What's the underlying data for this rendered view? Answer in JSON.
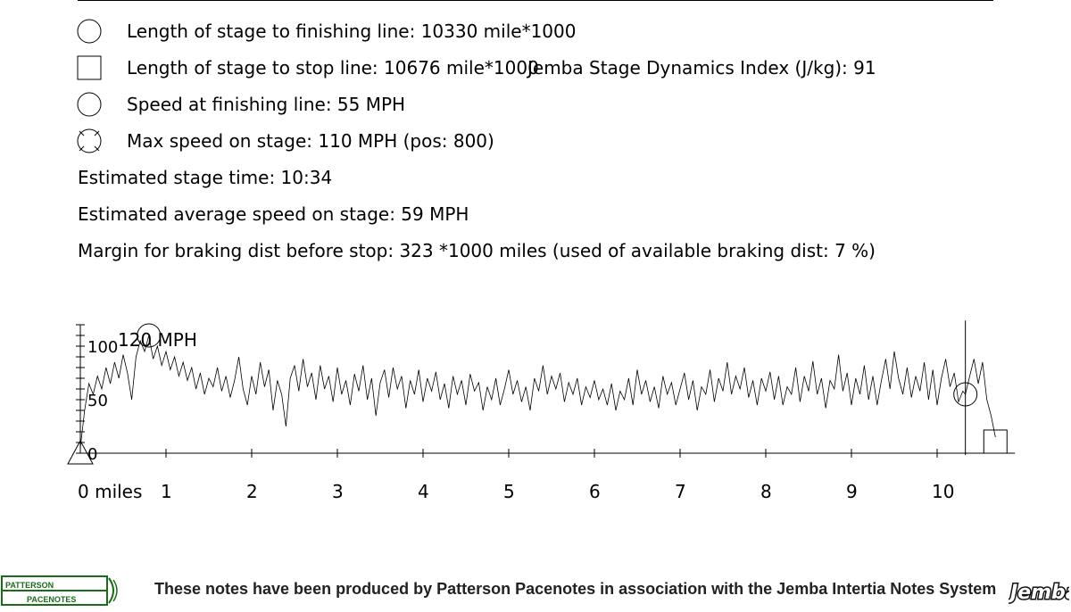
{
  "legend": [
    {
      "symbol": "circle",
      "icon": "finishing-line-circle-icon",
      "text": "Length of stage to finishing line: 10330 mile*1000"
    },
    {
      "symbol": "square",
      "icon": "stop-line-square-icon",
      "text": "Length of stage to stop line: 10676 mile*1000"
    },
    {
      "symbol": "circle",
      "icon": "finishing-speed-circle-icon",
      "text": "Speed at finishing line: 55 MPH"
    },
    {
      "symbol": "crossed-circle",
      "icon": "max-speed-crossed-circle-icon",
      "text": "Max speed on stage: 110 MPH (pos: 800)"
    }
  ],
  "dynamics_index": "Jemba Stage Dynamics Index (J/kg): 91",
  "info": [
    "Estimated stage time: 10:34",
    "Estimated average speed on stage: 59 MPH",
    "Margin for braking dist before stop: 323 *1000 miles (used of available braking dist: 7 %)"
  ],
  "footer": {
    "text": "These notes have been produced by Patterson Pacenotes in association with the Jemba Intertia Notes System",
    "logo_left_line1": "PATTERSON",
    "logo_left_line2": "PACENOTES",
    "logo_right": "Jemba"
  },
  "chart_data": {
    "type": "line",
    "y_unit_label": "120 MPH",
    "yticks": [
      "0",
      "50",
      "100"
    ],
    "xticks": [
      "0 miles",
      "1",
      "2",
      "3",
      "4",
      "5",
      "6",
      "7",
      "8",
      "9",
      "10"
    ],
    "xlim": [
      0,
      10.7
    ],
    "ylim": [
      0,
      120
    ],
    "finish_position": 10.33,
    "stop_position": 10.68,
    "finish_speed": 55,
    "max_speed": 110,
    "max_speed_position": 0.8,
    "series": [
      {
        "values": [
          [
            0,
            5
          ],
          [
            0.05,
            40
          ],
          [
            0.1,
            65
          ],
          [
            0.15,
            55
          ],
          [
            0.2,
            72
          ],
          [
            0.25,
            60
          ],
          [
            0.3,
            80
          ],
          [
            0.35,
            65
          ],
          [
            0.4,
            85
          ],
          [
            0.45,
            70
          ],
          [
            0.5,
            92
          ],
          [
            0.55,
            75
          ],
          [
            0.6,
            50
          ],
          [
            0.65,
            90
          ],
          [
            0.7,
            105
          ],
          [
            0.75,
            95
          ],
          [
            0.8,
            110
          ],
          [
            0.85,
            88
          ],
          [
            0.9,
            100
          ],
          [
            0.95,
            82
          ],
          [
            1.0,
            95
          ],
          [
            1.05,
            78
          ],
          [
            1.1,
            90
          ],
          [
            1.15,
            72
          ],
          [
            1.2,
            85
          ],
          [
            1.25,
            68
          ],
          [
            1.3,
            80
          ],
          [
            1.35,
            60
          ],
          [
            1.4,
            75
          ],
          [
            1.45,
            55
          ],
          [
            1.5,
            70
          ],
          [
            1.55,
            62
          ],
          [
            1.6,
            80
          ],
          [
            1.65,
            58
          ],
          [
            1.7,
            72
          ],
          [
            1.75,
            52
          ],
          [
            1.8,
            68
          ],
          [
            1.85,
            90
          ],
          [
            1.9,
            60
          ],
          [
            1.95,
            45
          ],
          [
            2.0,
            72
          ],
          [
            2.05,
            55
          ],
          [
            2.1,
            85
          ],
          [
            2.15,
            62
          ],
          [
            2.2,
            78
          ],
          [
            2.25,
            40
          ],
          [
            2.3,
            68
          ],
          [
            2.35,
            55
          ],
          [
            2.4,
            25
          ],
          [
            2.45,
            70
          ],
          [
            2.5,
            82
          ],
          [
            2.55,
            58
          ],
          [
            2.6,
            88
          ],
          [
            2.65,
            62
          ],
          [
            2.7,
            75
          ],
          [
            2.75,
            50
          ],
          [
            2.8,
            82
          ],
          [
            2.85,
            60
          ],
          [
            2.9,
            72
          ],
          [
            2.95,
            48
          ],
          [
            3.0,
            80
          ],
          [
            3.05,
            55
          ],
          [
            3.1,
            68
          ],
          [
            3.15,
            45
          ],
          [
            3.2,
            74
          ],
          [
            3.25,
            58
          ],
          [
            3.3,
            82
          ],
          [
            3.35,
            50
          ],
          [
            3.4,
            70
          ],
          [
            3.45,
            35
          ],
          [
            3.5,
            66
          ],
          [
            3.55,
            78
          ],
          [
            3.6,
            52
          ],
          [
            3.65,
            80
          ],
          [
            3.7,
            60
          ],
          [
            3.75,
            72
          ],
          [
            3.8,
            42
          ],
          [
            3.85,
            68
          ],
          [
            3.9,
            55
          ],
          [
            3.95,
            78
          ],
          [
            4.0,
            48
          ],
          [
            4.05,
            70
          ],
          [
            4.1,
            58
          ],
          [
            4.15,
            76
          ],
          [
            4.2,
            50
          ],
          [
            4.25,
            65
          ],
          [
            4.3,
            42
          ],
          [
            4.35,
            72
          ],
          [
            4.4,
            55
          ],
          [
            4.45,
            68
          ],
          [
            4.5,
            45
          ],
          [
            4.55,
            74
          ],
          [
            4.6,
            58
          ],
          [
            4.65,
            66
          ],
          [
            4.7,
            40
          ],
          [
            4.75,
            62
          ],
          [
            4.8,
            50
          ],
          [
            4.85,
            70
          ],
          [
            4.9,
            45
          ],
          [
            4.95,
            60
          ],
          [
            5.0,
            78
          ],
          [
            5.05,
            55
          ],
          [
            5.1,
            68
          ],
          [
            5.15,
            48
          ],
          [
            5.2,
            62
          ],
          [
            5.25,
            40
          ],
          [
            5.3,
            70
          ],
          [
            5.35,
            58
          ],
          [
            5.4,
            82
          ],
          [
            5.45,
            55
          ],
          [
            5.5,
            72
          ],
          [
            5.55,
            60
          ],
          [
            5.6,
            75
          ],
          [
            5.65,
            48
          ],
          [
            5.7,
            66
          ],
          [
            5.75,
            55
          ],
          [
            5.8,
            70
          ],
          [
            5.85,
            45
          ],
          [
            5.9,
            62
          ],
          [
            5.95,
            52
          ],
          [
            6.0,
            68
          ],
          [
            6.05,
            50
          ],
          [
            6.1,
            60
          ],
          [
            6.15,
            45
          ],
          [
            6.2,
            65
          ],
          [
            6.25,
            40
          ],
          [
            6.3,
            58
          ],
          [
            6.35,
            50
          ],
          [
            6.4,
            70
          ],
          [
            6.45,
            45
          ],
          [
            6.5,
            78
          ],
          [
            6.55,
            55
          ],
          [
            6.6,
            68
          ],
          [
            6.65,
            48
          ],
          [
            6.7,
            62
          ],
          [
            6.75,
            42
          ],
          [
            6.8,
            72
          ],
          [
            6.85,
            55
          ],
          [
            6.9,
            66
          ],
          [
            6.95,
            45
          ],
          [
            7.0,
            60
          ],
          [
            7.05,
            75
          ],
          [
            7.1,
            50
          ],
          [
            7.15,
            68
          ],
          [
            7.2,
            40
          ],
          [
            7.25,
            62
          ],
          [
            7.3,
            55
          ],
          [
            7.35,
            78
          ],
          [
            7.4,
            48
          ],
          [
            7.45,
            70
          ],
          [
            7.5,
            58
          ],
          [
            7.55,
            85
          ],
          [
            7.6,
            55
          ],
          [
            7.65,
            72
          ],
          [
            7.7,
            60
          ],
          [
            7.75,
            80
          ],
          [
            7.8,
            52
          ],
          [
            7.85,
            68
          ],
          [
            7.9,
            45
          ],
          [
            7.95,
            70
          ],
          [
            8.0,
            58
          ],
          [
            8.05,
            76
          ],
          [
            8.1,
            50
          ],
          [
            8.15,
            72
          ],
          [
            8.2,
            45
          ],
          [
            8.25,
            62
          ],
          [
            8.3,
            55
          ],
          [
            8.35,
            80
          ],
          [
            8.4,
            48
          ],
          [
            8.45,
            72
          ],
          [
            8.5,
            58
          ],
          [
            8.55,
            86
          ],
          [
            8.6,
            55
          ],
          [
            8.65,
            70
          ],
          [
            8.7,
            42
          ],
          [
            8.75,
            68
          ],
          [
            8.8,
            60
          ],
          [
            8.85,
            92
          ],
          [
            8.9,
            58
          ],
          [
            8.95,
            75
          ],
          [
            9.0,
            45
          ],
          [
            9.05,
            70
          ],
          [
            9.1,
            55
          ],
          [
            9.15,
            82
          ],
          [
            9.2,
            50
          ],
          [
            9.25,
            72
          ],
          [
            9.3,
            45
          ],
          [
            9.35,
            68
          ],
          [
            9.4,
            88
          ],
          [
            9.45,
            60
          ],
          [
            9.5,
            95
          ],
          [
            9.55,
            70
          ],
          [
            9.6,
            55
          ],
          [
            9.65,
            80
          ],
          [
            9.7,
            52
          ],
          [
            9.75,
            72
          ],
          [
            9.8,
            58
          ],
          [
            9.85,
            85
          ],
          [
            9.9,
            50
          ],
          [
            9.95,
            78
          ],
          [
            10.0,
            45
          ],
          [
            10.05,
            70
          ],
          [
            10.1,
            88
          ],
          [
            10.15,
            62
          ],
          [
            10.2,
            75
          ],
          [
            10.25,
            48
          ],
          [
            10.3,
            58
          ],
          [
            10.33,
            55
          ],
          [
            10.38,
            72
          ],
          [
            10.43,
            88
          ],
          [
            10.48,
            65
          ],
          [
            10.53,
            85
          ],
          [
            10.58,
            50
          ],
          [
            10.63,
            35
          ],
          [
            10.68,
            15
          ]
        ]
      }
    ]
  }
}
